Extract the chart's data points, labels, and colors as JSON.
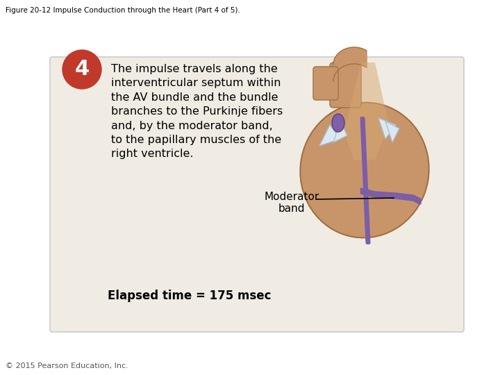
{
  "title": "Figure 20-12 Impulse Conduction through the Heart (Part 4 of 5).",
  "step_number": "4",
  "step_circle_color": "#c0392b",
  "step_text_color": "#ffffff",
  "main_text_lines": [
    "The impulse travels along the",
    "interventricular septum within",
    "the AV bundle and the bundle",
    "branches to the Purkinje fibers",
    "and, by the moderator band,",
    "to the papillary muscles of the",
    "right ventricle."
  ],
  "label_moderator": "Moderator\nband",
  "label_elapsed": "Elapsed time = 175 msec",
  "background_color": "#ffffff",
  "panel_bg_color": "#f0ece4",
  "panel_border_color": "#cccccc",
  "title_fontsize": 7.5,
  "step_fontsize": 22,
  "main_fontsize": 11.5,
  "label_fontsize": 11,
  "elapsed_fontsize": 12,
  "copyright_text": "© 2015 Pearson Education, Inc.",
  "copyright_fontsize": 8
}
